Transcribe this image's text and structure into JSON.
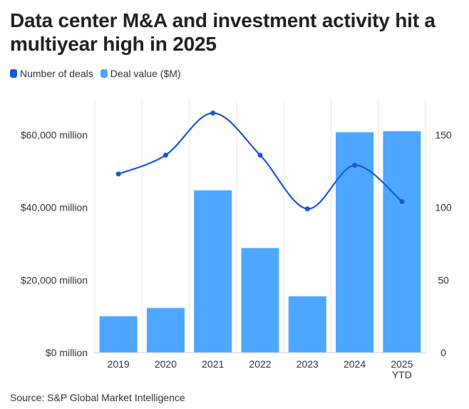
{
  "title": "Data center M&A and investment activity hit a multiyear high in 2025",
  "legend": [
    {
      "label": "Number of deals",
      "color": "#1a56db"
    },
    {
      "label": "Deal value ($M)",
      "color": "#4da6ff"
    }
  ],
  "source": "Source: S&P Global Market Intelligence",
  "chart_data": {
    "type": "bar",
    "categories": [
      [
        "2019"
      ],
      [
        "2020"
      ],
      [
        "2021"
      ],
      [
        "2022"
      ],
      [
        "2023"
      ],
      [
        "2024"
      ],
      [
        "2025",
        "YTD"
      ]
    ],
    "series": [
      {
        "name": "Deal value ($M)",
        "type": "bar",
        "axis": "left",
        "color": "#4da6ff",
        "values": [
          10000,
          12300,
          44700,
          28800,
          15500,
          60700,
          61000
        ]
      },
      {
        "name": "Number of deals",
        "type": "line",
        "axis": "right",
        "color": "#1a56db",
        "values": [
          123,
          136,
          165,
          136,
          99,
          129,
          104
        ]
      }
    ],
    "y_left": {
      "ylim": [
        0,
        70000
      ],
      "ticks": [
        0,
        20000,
        40000,
        60000
      ],
      "tick_labels": [
        "$0 million",
        "$20,000 million",
        "$40,000 million",
        "$60,000 million"
      ]
    },
    "y_right": {
      "ylim": [
        0,
        175
      ],
      "ticks": [
        0,
        50,
        100,
        150
      ],
      "tick_labels": [
        "0",
        "50",
        "100",
        "150"
      ]
    },
    "grid": "vertical",
    "legend_position": "top-left"
  }
}
